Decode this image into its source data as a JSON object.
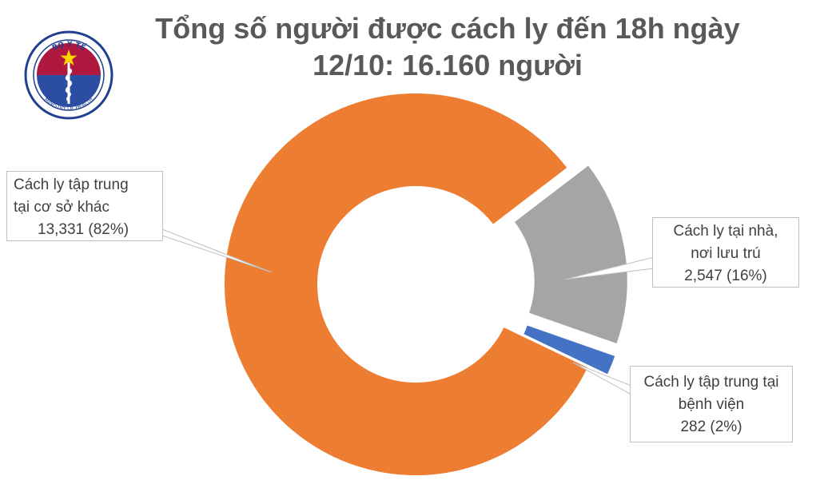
{
  "header": {
    "title_line1": "Tổng số người được cách ly đến 18h ngày",
    "title_line2": "12/10: 16.160 người"
  },
  "logo": {
    "text_top": "BỘ Y TẾ",
    "text_bottom": "MINISTRY OF HEALTH"
  },
  "colors": {
    "orange": "#ED7D31",
    "gray": "#A5A5A5",
    "blue": "#4472C4",
    "title": "#595959"
  },
  "chart_data": {
    "type": "pie",
    "title": "Tổng số người được cách ly đến 18h ngày 12/10: 16.160 người",
    "style": "doughnut",
    "series": [
      {
        "name": "Cách ly tập trung tại cơ sở khác",
        "value": 13331,
        "percent": 82,
        "color": "#ED7D31",
        "label_lines": [
          "Cách ly tập trung",
          "tại cơ sở khác",
          "13,331 (82%)"
        ]
      },
      {
        "name": "Cách ly tại nhà, nơi lưu trú",
        "value": 2547,
        "percent": 16,
        "color": "#A5A5A5",
        "label_lines": [
          "Cách ly tại nhà,",
          "nơi lưu trú",
          "2,547 (16%)"
        ]
      },
      {
        "name": "Cách ly tập trung tại bệnh viện",
        "value": 282,
        "percent": 2,
        "color": "#4472C4",
        "label_lines": [
          "Cách ly tập trung tại",
          "bệnh viện",
          "282 (2%)"
        ]
      }
    ]
  }
}
